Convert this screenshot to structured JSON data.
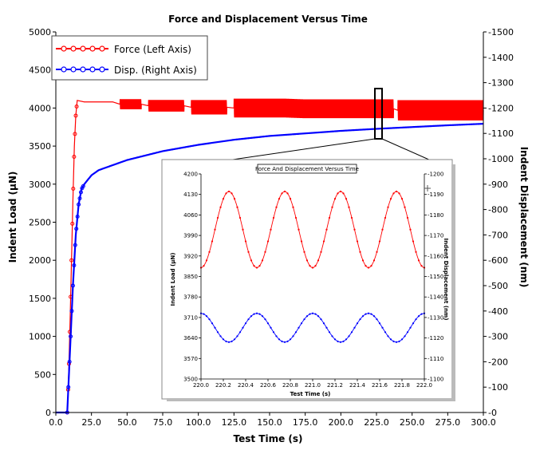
{
  "chart_data": [
    {
      "type": "line",
      "title": "Force and Displacement Versus Time",
      "xlabel": "Test Time (s)",
      "ylabel_left": "Indent Load (µN)",
      "ylabel_right": "Indent Displacement (nm)",
      "xlim": [
        0,
        300
      ],
      "ylim_left": [
        0,
        5000
      ],
      "ylim_right": [
        0,
        -1500
      ],
      "x_ticks": [
        "0.0",
        "25.0",
        "50.0",
        "75.0",
        "100.0",
        "125.0",
        "150.0",
        "175.0",
        "200.0",
        "225.0",
        "250.0",
        "275.0",
        "300.0"
      ],
      "y_ticks_left": [
        "0",
        "500",
        "1000",
        "1500",
        "2000",
        "2500",
        "3000",
        "3500",
        "4000",
        "4500",
        "5000"
      ],
      "y_ticks_right": [
        "-0",
        "-100",
        "-200",
        "-300",
        "-400",
        "-500",
        "-600",
        "-700",
        "-800",
        "-900",
        "-1000",
        "-1100",
        "-1200",
        "-1300",
        "-1400",
        "-1500"
      ],
      "legend_position": "top-left",
      "series": [
        {
          "name": "Force (Left Axis)",
          "axis": "left",
          "color": "#ff0000",
          "x": [
            0,
            8,
            9,
            10,
            11,
            12,
            13,
            14,
            15,
            20,
            40,
            45,
            60,
            65,
            90,
            95,
            120,
            125,
            150,
            160,
            175,
            200,
            225,
            237,
            240,
            260,
            280,
            300
          ],
          "y": [
            0,
            0,
            500,
            1200,
            2000,
            2800,
            3500,
            3900,
            4100,
            4080,
            4080,
            4050,
            4050,
            4030,
            4030,
            4010,
            4010,
            4000,
            4000,
            4000,
            3990,
            3990,
            3990,
            3990,
            3970,
            3970,
            3970,
            3970
          ],
          "oscillation": [
            {
              "x_range": [
                45,
                60
              ],
              "amplitude": 70
            },
            {
              "x_range": [
                65,
                90
              ],
              "amplitude": 80
            },
            {
              "x_range": [
                95,
                120
              ],
              "amplitude": 100
            },
            {
              "x_range": [
                125,
                237
              ],
              "amplitude": 130
            },
            {
              "x_range": [
                240,
                300
              ],
              "amplitude": 140
            }
          ]
        },
        {
          "name": "Disp. (Right Axis)",
          "axis": "right",
          "color": "#0000ff",
          "x": [
            0,
            8,
            10,
            12,
            14,
            16,
            18,
            20,
            25,
            30,
            40,
            50,
            75,
            100,
            125,
            150,
            175,
            200,
            225,
            250,
            275,
            300
          ],
          "y": [
            0,
            0,
            -250,
            -500,
            -700,
            -820,
            -880,
            -900,
            -935,
            -955,
            -975,
            -995,
            -1030,
            -1055,
            -1075,
            -1090,
            -1100,
            -1110,
            -1118,
            -1125,
            -1132,
            -1138
          ]
        }
      ],
      "zoom_box_x_range": [
        221,
        222
      ]
    },
    {
      "type": "line",
      "title": "Force And Displacement Versus Time",
      "xlabel": "Test Time (s)",
      "ylabel_left": "Indent Load (µN)",
      "ylabel_right": "Indent Displacement (nm)",
      "xlim": [
        220,
        222
      ],
      "ylim_left": [
        3500,
        4200
      ],
      "ylim_right": [
        -1100,
        -1200
      ],
      "x_ticks": [
        "220.0",
        "220.2",
        "220.4",
        "220.6",
        "220.8",
        "221.0",
        "221.2",
        "221.4",
        "221.6",
        "221.8",
        "222.0"
      ],
      "y_ticks_left": [
        "3500",
        "3570",
        "3640",
        "3710",
        "3780",
        "3850",
        "3920",
        "3990",
        "4060",
        "4130",
        "4200"
      ],
      "y_ticks_right": [
        "-1100",
        "-1110",
        "-1120",
        "-1130",
        "-1140",
        "-1150",
        "-1160",
        "-1170",
        "-1180",
        "-1190",
        "-1200"
      ],
      "series": [
        {
          "axis": "left",
          "color": "#ff0000",
          "model": "sine",
          "x_range": [
            220,
            222
          ],
          "center": 4010,
          "amplitude": 130,
          "period": 0.5,
          "peak_x": 220.25
        },
        {
          "axis": "right",
          "color": "#0000ff",
          "model": "sine",
          "x_range": [
            220,
            222
          ],
          "center": -1125,
          "amplitude": 7,
          "period": 0.5,
          "peak_x": 220.25
        }
      ]
    }
  ]
}
